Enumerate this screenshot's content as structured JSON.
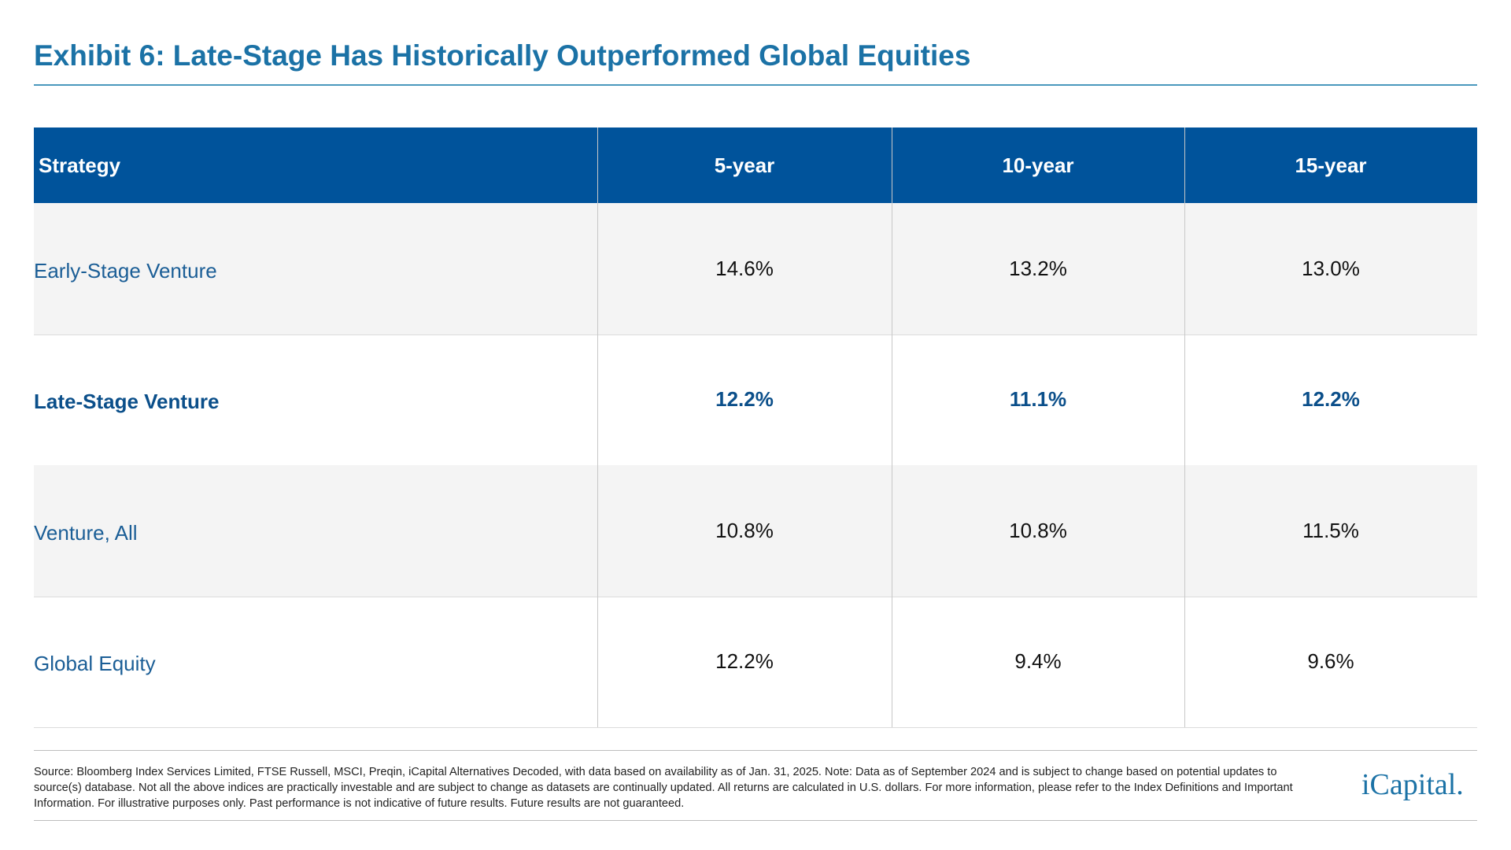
{
  "header": {
    "title": "Exhibit 6: Late-Stage Has Historically Outperformed Global Equities"
  },
  "table": {
    "columns": [
      "Strategy",
      "5-year",
      "10-year",
      "15-year"
    ],
    "rows": [
      [
        "Early-Stage Venture",
        "14.6%",
        "13.2%",
        "13.0%"
      ],
      [
        "Late-Stage Venture",
        "12.2%",
        "11.1%",
        "12.2%"
      ],
      [
        "Venture, All",
        "10.8%",
        "10.8%",
        "11.5%"
      ],
      [
        "Global Equity",
        "12.2%",
        "9.4%",
        "9.6%"
      ]
    ],
    "highlight_row": 1
  },
  "footer": {
    "source": "Source: Bloomberg Index Services Limited, FTSE Russell, MSCI, Preqin, iCapital Alternatives Decoded, with data based on availability as of Jan. 31, 2025. Note: Data as of September 2024 and is subject to change based on potential updates to source(s) database. Not all the above indices are practically investable and are subject to change as datasets are continually updated. All returns are calculated in U.S. dollars. For more information, please refer to the Index Definitions and Important Information. For illustrative purposes only. Past performance is not indicative of future results. Future results are not guaranteed.",
    "logo": "iCapital."
  }
}
